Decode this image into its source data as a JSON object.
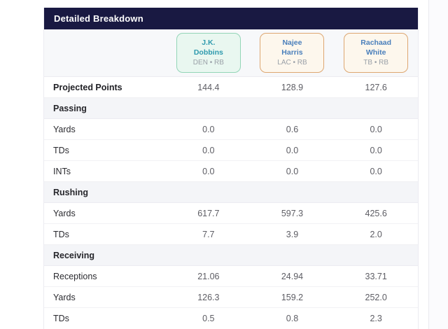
{
  "panel": {
    "title": "Detailed Breakdown"
  },
  "colors": {
    "header_bg": "#191942",
    "header_text": "#ffffff",
    "players_row_bg": "#f7f8fa",
    "section_row_bg": "#f4f5f8",
    "team_text": "#9aa0a8",
    "value_text": "#5d5d64"
  },
  "players": [
    {
      "first": "J.K.",
      "last": "Dobbins",
      "team": "DEN • RB",
      "card_bg": "#e9f7f0",
      "card_border": "#93d5b7",
      "name_color": "#2e9aae"
    },
    {
      "first": "Najee",
      "last": "Harris",
      "team": "LAC • RB",
      "card_bg": "#fdf7ed",
      "card_border": "#dda772",
      "name_color": "#4a7fbb"
    },
    {
      "first": "Rachaad",
      "last": "White",
      "team": "TB • RB",
      "card_bg": "#fdf7ed",
      "card_border": "#dda772",
      "name_color": "#4a7fbb"
    }
  ],
  "table": {
    "rows": [
      {
        "type": "stat",
        "bold": true,
        "label": "Projected Points",
        "values": [
          "144.4",
          "128.9",
          "127.6"
        ]
      },
      {
        "type": "section",
        "label": "Passing"
      },
      {
        "type": "stat",
        "bold": false,
        "label": "Yards",
        "values": [
          "0.0",
          "0.6",
          "0.0"
        ]
      },
      {
        "type": "stat",
        "bold": false,
        "label": "TDs",
        "values": [
          "0.0",
          "0.0",
          "0.0"
        ]
      },
      {
        "type": "stat",
        "bold": false,
        "label": "INTs",
        "values": [
          "0.0",
          "0.0",
          "0.0"
        ]
      },
      {
        "type": "section",
        "label": "Rushing"
      },
      {
        "type": "stat",
        "bold": false,
        "label": "Yards",
        "values": [
          "617.7",
          "597.3",
          "425.6"
        ]
      },
      {
        "type": "stat",
        "bold": false,
        "label": "TDs",
        "values": [
          "7.7",
          "3.9",
          "2.0"
        ]
      },
      {
        "type": "section",
        "label": "Receiving"
      },
      {
        "type": "stat",
        "bold": false,
        "label": "Receptions",
        "values": [
          "21.06",
          "24.94",
          "33.71"
        ]
      },
      {
        "type": "stat",
        "bold": false,
        "label": "Yards",
        "values": [
          "126.3",
          "159.2",
          "252.0"
        ]
      },
      {
        "type": "stat",
        "bold": false,
        "label": "TDs",
        "values": [
          "0.5",
          "0.8",
          "2.3"
        ]
      }
    ]
  }
}
